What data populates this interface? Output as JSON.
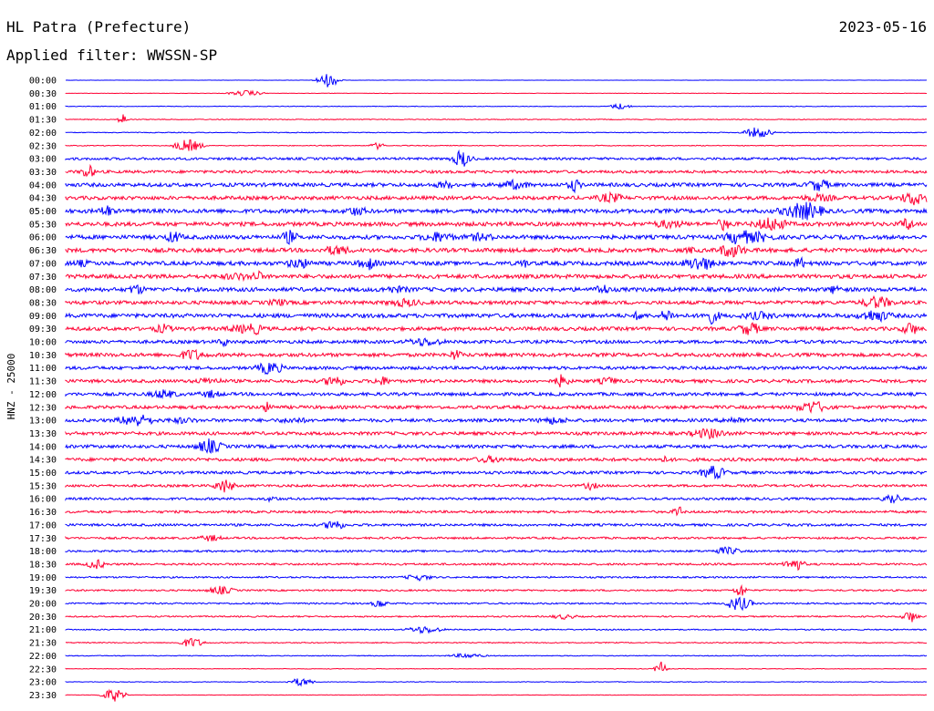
{
  "header": {
    "station": "HL Patra (Prefecture)",
    "date": "2023-05-16",
    "filter": "Applied filter: WWSSN-SP"
  },
  "chart_data": {
    "type": "line",
    "title": "HL Patra (Prefecture)",
    "ylabel": "HNZ - 25000",
    "xlabel": "",
    "row_labels": [
      "00:00",
      "00:30",
      "01:00",
      "01:30",
      "02:00",
      "02:30",
      "03:00",
      "03:30",
      "04:00",
      "04:30",
      "05:00",
      "05:30",
      "06:00",
      "06:30",
      "07:00",
      "07:30",
      "08:00",
      "08:30",
      "09:00",
      "09:30",
      "10:00",
      "10:30",
      "11:00",
      "11:30",
      "12:00",
      "12:30",
      "13:00",
      "13:30",
      "14:00",
      "14:30",
      "15:00",
      "15:30",
      "16:00",
      "16:30",
      "17:00",
      "17:30",
      "18:00",
      "18:30",
      "19:00",
      "19:30",
      "20:00",
      "20:30",
      "21:00",
      "21:30",
      "22:00",
      "22:30",
      "23:00",
      "23:30"
    ],
    "series_colors": [
      "#0000ff",
      "#ff0033"
    ],
    "noise_level": [
      0.05,
      0.1,
      0.15,
      0.2,
      0.2,
      0.2,
      0.6,
      0.7,
      0.9,
      0.9,
      1.0,
      1.0,
      1.0,
      1.0,
      1.0,
      1.0,
      1.0,
      0.9,
      1.0,
      0.9,
      0.8,
      0.9,
      0.8,
      0.8,
      0.8,
      0.8,
      0.8,
      0.8,
      0.8,
      0.8,
      0.7,
      0.6,
      0.6,
      0.6,
      0.6,
      0.5,
      0.5,
      0.5,
      0.4,
      0.4,
      0.4,
      0.35,
      0.3,
      0.25,
      0.2,
      0.15,
      0.15,
      0.1
    ]
  }
}
